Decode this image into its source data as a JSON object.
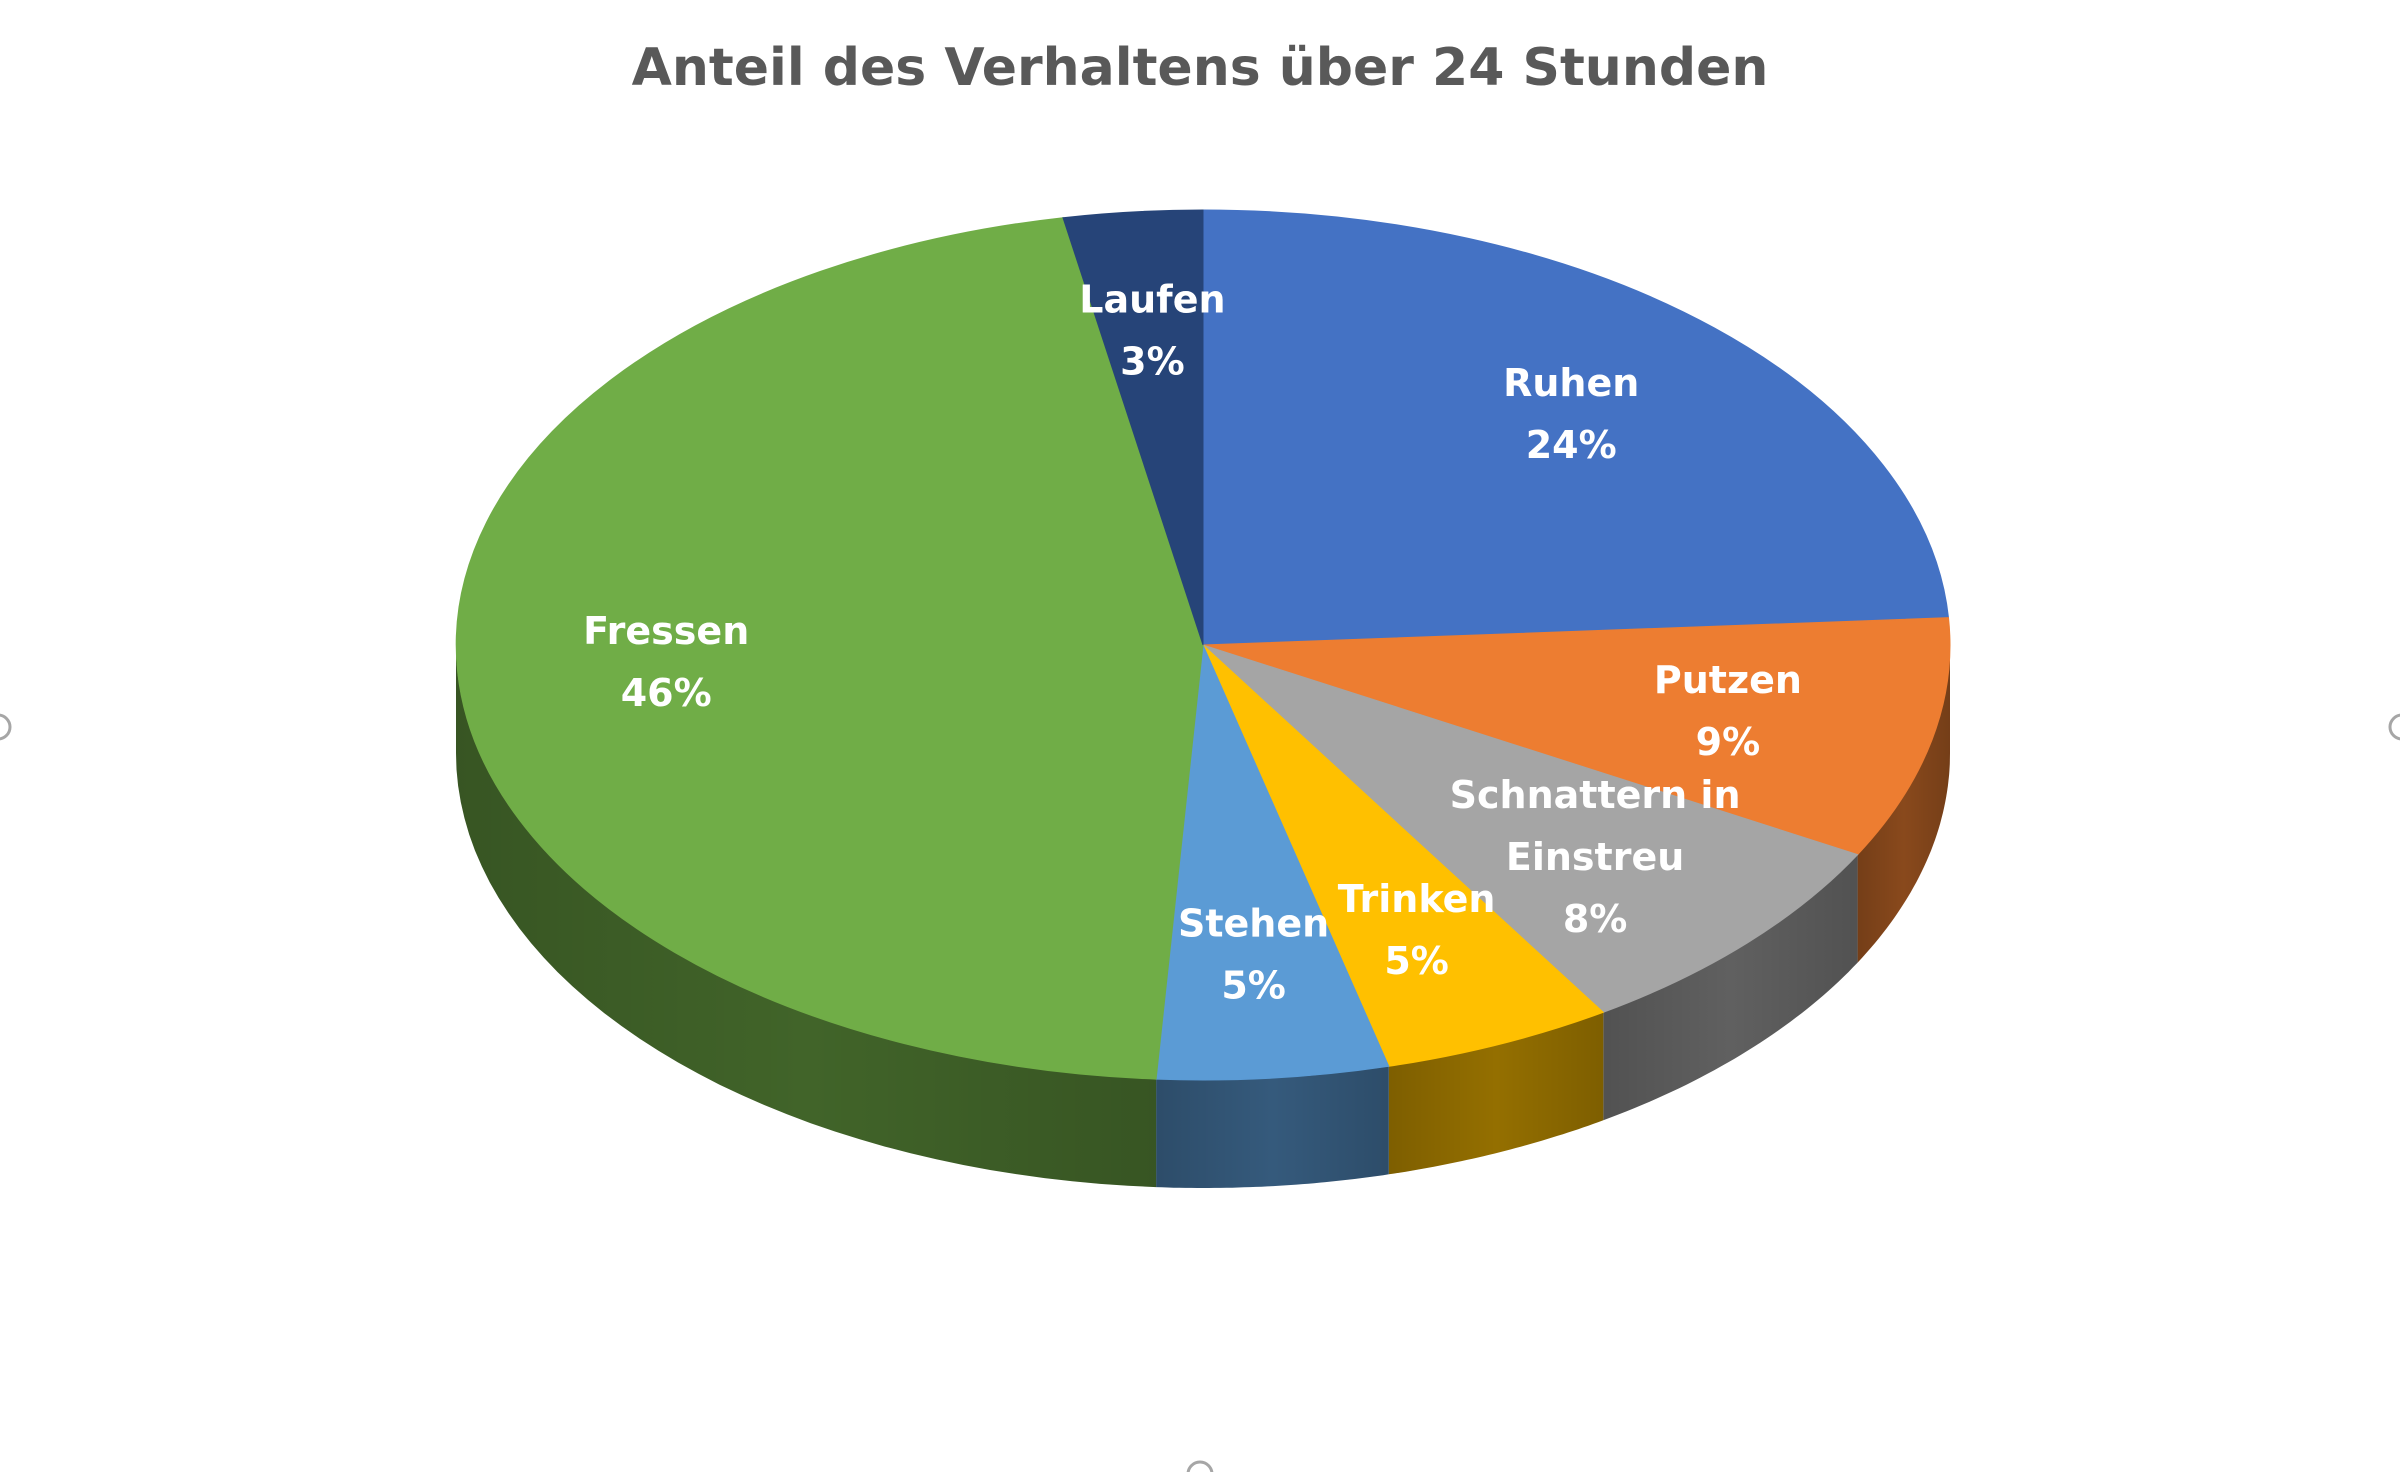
{
  "chart_data": {
    "type": "pie",
    "title": "Anteil des Verhaltens über 24 Stunden",
    "slices": [
      {
        "label": "Ruhen",
        "value": 24,
        "pct_label": "24%",
        "color": "#4472C4",
        "label_lines": [
          "Ruhen"
        ]
      },
      {
        "label": "Putzen",
        "value": 9,
        "pct_label": "9%",
        "color": "#ED7D31",
        "label_lines": [
          "Putzen"
        ]
      },
      {
        "label": "Schnattern in Einstreu",
        "value": 8,
        "pct_label": "8%",
        "color": "#A5A5A5",
        "label_lines": [
          "Schnattern in",
          "Einstreu"
        ]
      },
      {
        "label": "Trinken",
        "value": 5,
        "pct_label": "5%",
        "color": "#FFC000",
        "label_lines": [
          "Trinken"
        ]
      },
      {
        "label": "Stehen",
        "value": 5,
        "pct_label": "5%",
        "color": "#5B9BD5",
        "label_lines": [
          "Stehen"
        ]
      },
      {
        "label": "Fressen",
        "value": 46,
        "pct_label": "46%",
        "color": "#70AD47",
        "label_lines": [
          "Fressen"
        ]
      },
      {
        "label": "Laufen",
        "value": 3,
        "pct_label": "3%",
        "color": "#264478",
        "label_lines": [
          "Laufen"
        ]
      }
    ],
    "start_angle": "12 o'clock",
    "direction": "clockwise",
    "style": "3d",
    "legend": "none"
  }
}
